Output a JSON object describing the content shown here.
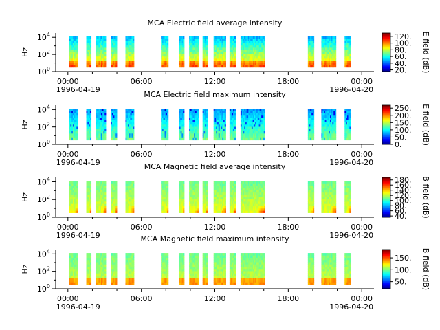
{
  "chart_data": [
    {
      "type": "heatmap",
      "title": "MCA  Electric field average intensity",
      "ylabel": "Hz",
      "yticks": [
        "10^0",
        "10^2",
        "10^4"
      ],
      "xticks": [
        "00:00",
        "06:00",
        "12:00",
        "18:00",
        "00:00"
      ],
      "xdates": [
        "1996-04-19",
        "1996-04-20"
      ],
      "xlim_hours": [
        -1,
        25
      ],
      "ylim_log10": [
        0,
        4.5
      ],
      "colorbar": {
        "label": "E field (dB)",
        "ticks": [
          "20.",
          "40.",
          "60.",
          "80.",
          "100.",
          "120."
        ],
        "range": [
          15,
          130
        ]
      },
      "style": "avg-e"
    },
    {
      "type": "heatmap",
      "title": "MCA  Electric field maximum intensity",
      "ylabel": "Hz",
      "yticks": [
        "10^0",
        "10^2",
        "10^4"
      ],
      "xticks": [
        "00:00",
        "06:00",
        "12:00",
        "18:00",
        "00:00"
      ],
      "xdates": [
        "1996-04-19",
        "1996-04-20"
      ],
      "xlim_hours": [
        -1,
        25
      ],
      "ylim_log10": [
        0,
        4.5
      ],
      "colorbar": {
        "label": "E field (dB)",
        "ticks": [
          "0.",
          "50.",
          "100.",
          "150.",
          "200.",
          "250."
        ],
        "range": [
          0,
          270
        ]
      },
      "style": "max-e"
    },
    {
      "type": "heatmap",
      "title": "MCA  Magnetic field average intensity",
      "ylabel": "Hz",
      "yticks": [
        "10^0",
        "10^2",
        "10^4"
      ],
      "xticks": [
        "00:00",
        "06:00",
        "12:00",
        "18:00",
        "00:00"
      ],
      "xdates": [
        "1996-04-19",
        "1996-04-20"
      ],
      "xlim_hours": [
        -1,
        25
      ],
      "ylim_log10": [
        0,
        4.5
      ],
      "colorbar": {
        "label": "B field (dB)",
        "ticks": [
          "40.",
          "60.",
          "80.",
          "100.",
          "120.",
          "140.",
          "160.",
          "180."
        ],
        "range": [
          35,
          190
        ]
      },
      "style": "avg-b"
    },
    {
      "type": "heatmap",
      "title": "MCA  Magnetic field maximum intensity",
      "ylabel": "Hz",
      "yticks": [
        "10^0",
        "10^2",
        "10^4"
      ],
      "xticks": [
        "00:00",
        "06:00",
        "12:00",
        "18:00",
        "00:00"
      ],
      "xdates": [
        "1996-04-19",
        "1996-04-20"
      ],
      "xlim_hours": [
        -1,
        25
      ],
      "ylim_log10": [
        0,
        4.5
      ],
      "colorbar": {
        "label": "B field (dB)",
        "ticks": [
          "50.",
          "100.",
          "150."
        ],
        "range": [
          20,
          185
        ]
      },
      "style": "max-b"
    }
  ],
  "data_intervals_hours": [
    [
      0.1,
      0.8
    ],
    [
      1.5,
      1.9
    ],
    [
      2.3,
      3.1
    ],
    [
      3.5,
      4.0
    ],
    [
      4.7,
      5.4
    ],
    [
      7.6,
      8.2
    ],
    [
      9.1,
      9.5
    ],
    [
      9.9,
      10.7
    ],
    [
      11.0,
      11.4
    ],
    [
      11.9,
      12.9
    ],
    [
      13.2,
      13.7
    ],
    [
      14.1,
      16.1
    ],
    [
      19.6,
      20.1
    ],
    [
      20.7,
      21.9
    ],
    [
      22.6,
      23.1
    ]
  ]
}
